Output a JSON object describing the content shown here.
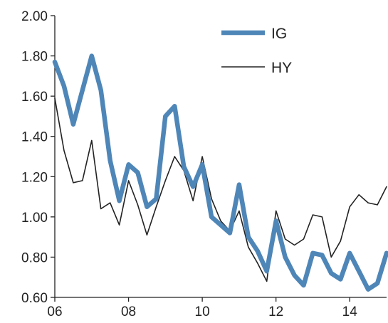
{
  "chart_data": {
    "type": "line",
    "title": "",
    "xlabel": "",
    "ylabel": "",
    "ylim": [
      0.6,
      2.0
    ],
    "xlim": [
      2006,
      2015
    ],
    "y_ticks": [
      {
        "value": 2.0,
        "label": "2.00"
      },
      {
        "value": 1.8,
        "label": "1.80"
      },
      {
        "value": 1.6,
        "label": "1.60"
      },
      {
        "value": 1.4,
        "label": "1.40"
      },
      {
        "value": 1.2,
        "label": "1.20"
      },
      {
        "value": 1.0,
        "label": "1.00"
      },
      {
        "value": 0.8,
        "label": "0.80"
      },
      {
        "value": 0.6,
        "label": "0.60"
      }
    ],
    "x_ticks": [
      {
        "value": 2006,
        "label": "06"
      },
      {
        "value": 2008,
        "label": "08"
      },
      {
        "value": 2010,
        "label": "10"
      },
      {
        "value": 2012,
        "label": "12"
      },
      {
        "value": 2014,
        "label": "14"
      }
    ],
    "grid": false,
    "legend_position": "top-right",
    "series": [
      {
        "name": "IG",
        "color": "#4f86b8",
        "x": [
          2006.0,
          2006.25,
          2006.5,
          2006.75,
          2007.0,
          2007.25,
          2007.5,
          2007.75,
          2008.0,
          2008.25,
          2008.5,
          2008.75,
          2009.0,
          2009.25,
          2009.5,
          2009.75,
          2010.0,
          2010.25,
          2010.5,
          2010.75,
          2011.0,
          2011.25,
          2011.5,
          2011.75,
          2012.0,
          2012.25,
          2012.5,
          2012.75,
          2013.0,
          2013.25,
          2013.5,
          2013.75,
          2014.0,
          2014.25,
          2014.5,
          2014.75,
          2015.0
        ],
        "values": [
          1.77,
          1.65,
          1.46,
          1.63,
          1.8,
          1.63,
          1.28,
          1.08,
          1.26,
          1.22,
          1.05,
          1.09,
          1.5,
          1.55,
          1.25,
          1.15,
          1.26,
          1.0,
          0.96,
          0.92,
          1.16,
          0.9,
          0.83,
          0.73,
          0.98,
          0.8,
          0.71,
          0.66,
          0.82,
          0.81,
          0.72,
          0.69,
          0.82,
          0.73,
          0.64,
          0.67,
          0.82
        ]
      },
      {
        "name": "HY",
        "color": "#222222",
        "x": [
          2006.0,
          2006.25,
          2006.5,
          2006.75,
          2007.0,
          2007.25,
          2007.5,
          2007.75,
          2008.0,
          2008.25,
          2008.5,
          2008.75,
          2009.0,
          2009.25,
          2009.5,
          2009.75,
          2010.0,
          2010.25,
          2010.5,
          2010.75,
          2011.0,
          2011.25,
          2011.5,
          2011.75,
          2012.0,
          2012.25,
          2012.5,
          2012.75,
          2013.0,
          2013.25,
          2013.5,
          2013.75,
          2014.0,
          2014.25,
          2014.5,
          2014.75,
          2015.0
        ],
        "values": [
          1.59,
          1.33,
          1.17,
          1.18,
          1.38,
          1.04,
          1.07,
          0.96,
          1.18,
          1.06,
          0.91,
          1.05,
          1.18,
          1.3,
          1.23,
          1.08,
          1.3,
          1.09,
          0.98,
          0.93,
          1.03,
          0.85,
          0.77,
          0.68,
          1.03,
          0.89,
          0.86,
          0.89,
          1.01,
          1.0,
          0.8,
          0.88,
          1.05,
          1.11,
          1.07,
          1.06,
          1.15
        ]
      }
    ]
  }
}
